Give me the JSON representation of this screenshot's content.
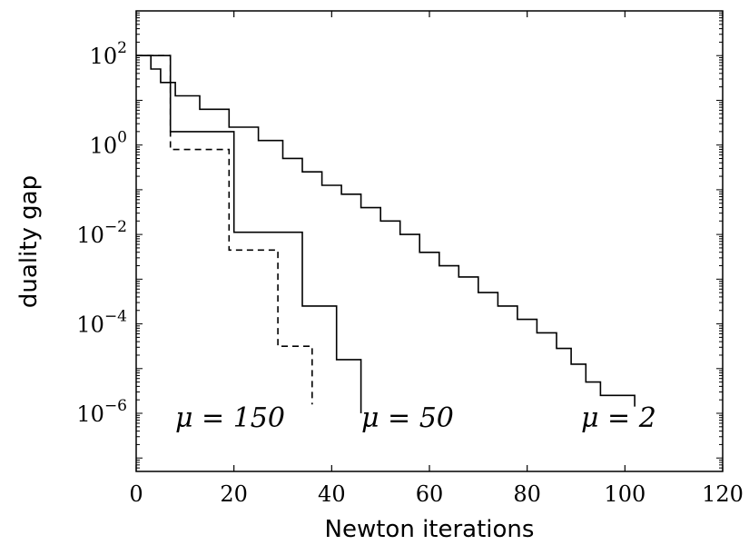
{
  "chart_data": {
    "type": "line",
    "title": "",
    "xlabel": "Newton iterations",
    "ylabel": "duality gap",
    "xlim": [
      0,
      120
    ],
    "ylim_log10": [
      -7.3,
      3.0
    ],
    "yscale": "log",
    "grid": false,
    "legend": "none",
    "x_ticks": [
      "0",
      "20",
      "40",
      "60",
      "80",
      "100",
      "120"
    ],
    "y_ticks": [
      {
        "base": "10",
        "exp": "2",
        "log10": 2
      },
      {
        "base": "10",
        "exp": "0",
        "log10": 0
      },
      {
        "base": "10",
        "exp": "−2",
        "log10": -2
      },
      {
        "base": "10",
        "exp": "−4",
        "log10": -4
      },
      {
        "base": "10",
        "exp": "−6",
        "log10": -6
      }
    ],
    "series": [
      {
        "label": "μ = 150",
        "style": "dashed",
        "color": "#000000",
        "steps_x": [
          0,
          7,
          19,
          29,
          36
        ],
        "steps_log10gap": [
          2.0,
          -0.1,
          -2.35,
          -4.5,
          -5.8
        ]
      },
      {
        "label": "μ = 50",
        "style": "solid",
        "color": "#000000",
        "steps_x": [
          0,
          7,
          20,
          34,
          41,
          46
        ],
        "steps_log10gap": [
          2.0,
          0.3,
          -1.95,
          -3.6,
          -4.8,
          -6.0
        ]
      },
      {
        "label": "μ = 2",
        "style": "solid",
        "color": "#000000",
        "steps_x": [
          0,
          3,
          5,
          8,
          13,
          19,
          25,
          30,
          34,
          38,
          42,
          46,
          50,
          54,
          58,
          62,
          66,
          70,
          74,
          78,
          82,
          86,
          89,
          92,
          95,
          102
        ],
        "steps_log10gap": [
          2.0,
          1.7,
          1.4,
          1.1,
          0.8,
          0.4,
          0.1,
          -0.3,
          -0.6,
          -0.9,
          -1.1,
          -1.4,
          -1.7,
          -2.0,
          -2.4,
          -2.7,
          -2.95,
          -3.3,
          -3.6,
          -3.9,
          -4.2,
          -4.55,
          -4.9,
          -5.3,
          -5.6,
          -5.85
        ]
      }
    ],
    "annotations": [
      {
        "text": "μ = 150"
      },
      {
        "text": "μ = 50"
      },
      {
        "text": "μ = 2"
      }
    ]
  }
}
